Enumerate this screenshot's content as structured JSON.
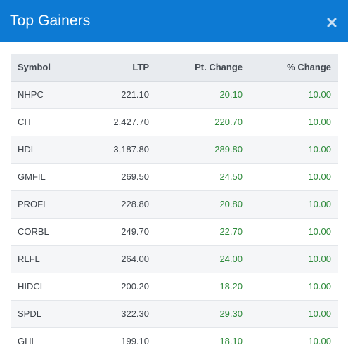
{
  "modal": {
    "title": "Top Gainers",
    "close_icon": "close-icon"
  },
  "table": {
    "headers": {
      "symbol": "Symbol",
      "ltp": "LTP",
      "pt_change": "Pt. Change",
      "pct_change": "% Change"
    },
    "rows": [
      {
        "symbol": "NHPC",
        "ltp": "221.10",
        "pt_change": "20.10",
        "pct_change": "10.00"
      },
      {
        "symbol": "CIT",
        "ltp": "2,427.70",
        "pt_change": "220.70",
        "pct_change": "10.00"
      },
      {
        "symbol": "HDL",
        "ltp": "3,187.80",
        "pt_change": "289.80",
        "pct_change": "10.00"
      },
      {
        "symbol": "GMFIL",
        "ltp": "269.50",
        "pt_change": "24.50",
        "pct_change": "10.00"
      },
      {
        "symbol": "PROFL",
        "ltp": "228.80",
        "pt_change": "20.80",
        "pct_change": "10.00"
      },
      {
        "symbol": "CORBL",
        "ltp": "249.70",
        "pt_change": "22.70",
        "pct_change": "10.00"
      },
      {
        "symbol": "RLFL",
        "ltp": "264.00",
        "pt_change": "24.00",
        "pct_change": "10.00"
      },
      {
        "symbol": "HIDCL",
        "ltp": "200.20",
        "pt_change": "18.20",
        "pct_change": "10.00"
      },
      {
        "symbol": "SPDL",
        "ltp": "322.30",
        "pt_change": "29.30",
        "pct_change": "10.00"
      },
      {
        "symbol": "GHL",
        "ltp": "199.10",
        "pt_change": "18.10",
        "pct_change": "10.00"
      }
    ]
  },
  "colors": {
    "header_bg": "#0d7ad3",
    "positive": "#2d8a3a"
  }
}
